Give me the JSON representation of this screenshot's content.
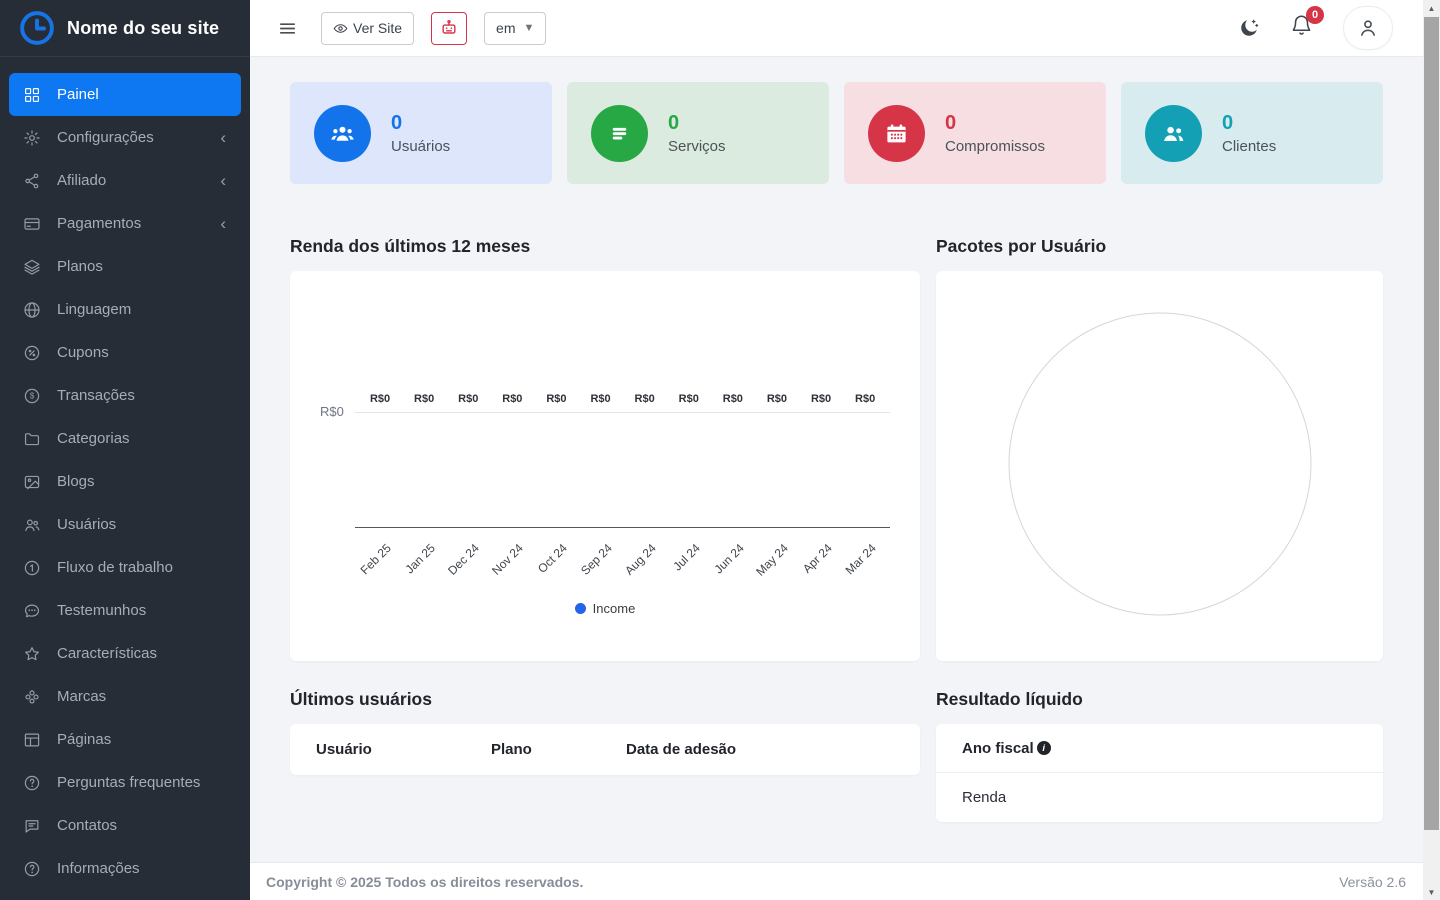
{
  "site": {
    "title": "Nome do seu site",
    "logo_icon": "clock"
  },
  "sidebar": {
    "items": [
      {
        "slug": "painel",
        "label": "Painel",
        "icon": "grid",
        "active": true,
        "chevron": false
      },
      {
        "slug": "configuracoes",
        "label": "Configurações",
        "icon": "gear",
        "active": false,
        "chevron": true
      },
      {
        "slug": "afiliado",
        "label": "Afiliado",
        "icon": "share",
        "active": false,
        "chevron": true
      },
      {
        "slug": "pagamentos",
        "label": "Pagamentos",
        "icon": "credit-card",
        "active": false,
        "chevron": true
      },
      {
        "slug": "planos",
        "label": "Planos",
        "icon": "layers",
        "active": false,
        "chevron": false
      },
      {
        "slug": "linguagem",
        "label": "Linguagem",
        "icon": "globe",
        "active": false,
        "chevron": false
      },
      {
        "slug": "cupons",
        "label": "Cupons",
        "icon": "badge-percent",
        "active": false,
        "chevron": false
      },
      {
        "slug": "transacoes",
        "label": "Transações",
        "icon": "currency-circle",
        "active": false,
        "chevron": false
      },
      {
        "slug": "categorias",
        "label": "Categorias",
        "icon": "folder",
        "active": false,
        "chevron": false
      },
      {
        "slug": "blogs",
        "label": "Blogs",
        "icon": "image",
        "active": false,
        "chevron": false
      },
      {
        "slug": "usuarios",
        "label": "Usuários",
        "icon": "users",
        "active": false,
        "chevron": false
      },
      {
        "slug": "fluxo-de-trabalho",
        "label": "Fluxo de trabalho",
        "icon": "one-circle",
        "active": false,
        "chevron": false
      },
      {
        "slug": "testemunhos",
        "label": "Testemunhos",
        "icon": "chat-dots",
        "active": false,
        "chevron": false
      },
      {
        "slug": "caracteristicas",
        "label": "Características",
        "icon": "star",
        "active": false,
        "chevron": false
      },
      {
        "slug": "marcas",
        "label": "Marcas",
        "icon": "flower",
        "active": false,
        "chevron": false
      },
      {
        "slug": "paginas",
        "label": "Páginas",
        "icon": "layout",
        "active": false,
        "chevron": false
      },
      {
        "slug": "perguntas-frequentes",
        "label": "Perguntas frequentes",
        "icon": "question-circle",
        "active": false,
        "chevron": false
      },
      {
        "slug": "contatos",
        "label": "Contatos",
        "icon": "chat-square",
        "active": false,
        "chevron": false
      },
      {
        "slug": "informacoes",
        "label": "Informações",
        "icon": "question-circle",
        "active": false,
        "chevron": false
      }
    ]
  },
  "topbar": {
    "ver_site_label": "Ver Site",
    "ver_site_icon": "eye",
    "robot_icon": "robot",
    "language_value": "em",
    "dark_mode_icon": "moon-stars",
    "notification_count": "0",
    "profile_icon": "person"
  },
  "stats": [
    {
      "value": "0",
      "label": "Usuários",
      "icon": "users-group",
      "color": "#1273eb",
      "bg": "#dde6fa"
    },
    {
      "value": "0",
      "label": "Serviços",
      "icon": "list",
      "color": "#28a745",
      "bg": "#dcebe0"
    },
    {
      "value": "0",
      "label": "Compromissos",
      "icon": "calendar",
      "color": "#d63548",
      "bg": "#f6dee2"
    },
    {
      "value": "0",
      "label": "Clientes",
      "icon": "users-two",
      "color": "#13a0b5",
      "bg": "#d8ebee"
    }
  ],
  "income_section": {
    "heading": "Renda dos últimos 12 meses"
  },
  "packages_section": {
    "heading": "Pacotes por Usuário"
  },
  "latest_users": {
    "heading": "Últimos usuários",
    "columns": [
      "Usuário",
      "Plano",
      "Data de adesão"
    ],
    "rows": []
  },
  "net_result": {
    "heading": "Resultado líquido",
    "rows": [
      "Ano fiscal",
      "Renda"
    ],
    "info_icon": "info-circle"
  },
  "footer": {
    "copyright": "Copyright © 2025 Todos os direitos reservados.",
    "version": "Versão 2.6"
  },
  "chart_data": [
    {
      "type": "line",
      "title": "Renda dos últimos 12 meses",
      "x": [
        "Feb 25",
        "Jan 25",
        "Dec 24",
        "Nov 24",
        "Oct 24",
        "Sep 24",
        "Aug 24",
        "Jul 24",
        "Jun 24",
        "May 24",
        "Apr 24",
        "Mar 24"
      ],
      "series": [
        {
          "name": "Income",
          "values": [
            0,
            0,
            0,
            0,
            0,
            0,
            0,
            0,
            0,
            0,
            0,
            0
          ],
          "color": "#2563eb"
        }
      ],
      "point_label_prefix": "R$",
      "y_axis_label": "R$0",
      "ylim": [
        0,
        0
      ],
      "grid": false,
      "legend_position": "bottom"
    },
    {
      "type": "pie",
      "title": "Pacotes por Usuário",
      "slices": [],
      "empty": true
    }
  ]
}
